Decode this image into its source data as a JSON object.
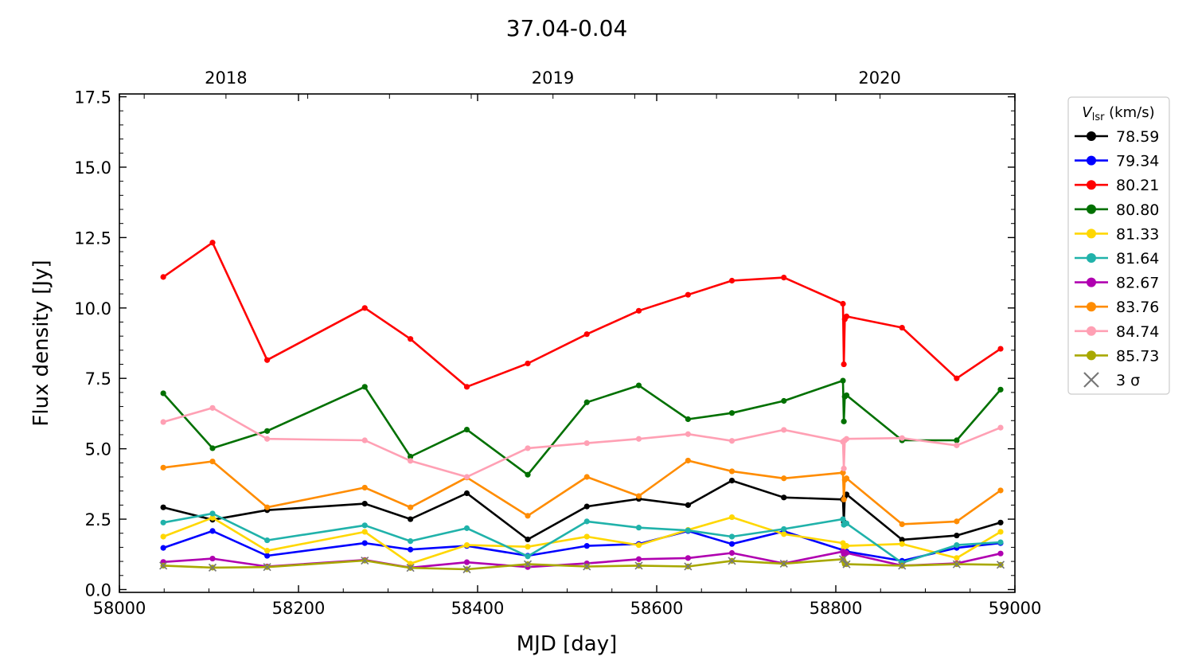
{
  "chart_data": {
    "type": "line",
    "title": "37.04-0.04",
    "xlabel": "MJD [day]",
    "ylabel": "Flux density [Jy]",
    "xlim": [
      58000,
      59000
    ],
    "ylim": [
      -0.1,
      17.6
    ],
    "x_ticks": [
      58000,
      58200,
      58400,
      58600,
      58800,
      59000
    ],
    "y_ticks": [
      0.0,
      2.5,
      5.0,
      7.5,
      10.0,
      12.5,
      15.0,
      17.5
    ],
    "y_tick_labels": [
      "0.0",
      "2.5",
      "5.0",
      "7.5",
      "10.0",
      "12.5",
      "15.0",
      "17.5"
    ],
    "top_axis": {
      "ticks": [
        58119,
        58484,
        58849
      ],
      "labels": [
        "2018",
        "2019",
        "2020"
      ]
    },
    "x": [
      58049,
      58104,
      58165,
      58274,
      58325,
      58388,
      58456,
      58522,
      58580,
      58635,
      58684,
      58742,
      58808,
      58809,
      58810,
      58812,
      58874,
      58935,
      58984
    ],
    "legend": {
      "title_main": "V",
      "title_sub": "lsr",
      "title_unit": " (km/s)",
      "placement": "outside-right",
      "sigma_label": "3 σ"
    },
    "series": [
      {
        "name": "78.59",
        "color": "#000000",
        "values": [
          2.92,
          2.48,
          2.82,
          3.05,
          2.5,
          3.42,
          1.78,
          2.95,
          3.22,
          3.0,
          3.87,
          3.27,
          3.2,
          2.4,
          3.3,
          3.38,
          1.77,
          1.92,
          2.38
        ]
      },
      {
        "name": "79.34",
        "color": "#0000ff",
        "values": [
          1.48,
          2.08,
          1.2,
          1.65,
          1.42,
          1.55,
          1.2,
          1.55,
          1.62,
          2.08,
          1.62,
          2.07,
          1.4,
          1.3,
          1.35,
          1.35,
          1.02,
          1.48,
          1.65
        ]
      },
      {
        "name": "80.21",
        "color": "#ff0000",
        "values": [
          11.1,
          12.32,
          8.15,
          10.0,
          8.9,
          7.2,
          8.03,
          9.07,
          9.9,
          10.47,
          10.97,
          11.08,
          10.15,
          8.0,
          9.6,
          9.7,
          9.3,
          7.5,
          8.55
        ]
      },
      {
        "name": "80.80",
        "color": "#007000",
        "values": [
          6.97,
          5.02,
          5.63,
          7.2,
          4.72,
          5.68,
          4.08,
          6.65,
          7.25,
          6.05,
          6.27,
          6.7,
          7.42,
          5.97,
          6.85,
          6.9,
          5.3,
          5.3,
          7.1
        ]
      },
      {
        "name": "81.33",
        "color": "#ffd700",
        "values": [
          1.88,
          2.55,
          1.38,
          2.05,
          0.92,
          1.58,
          1.52,
          1.88,
          1.58,
          2.12,
          2.57,
          1.97,
          1.65,
          1.5,
          1.55,
          1.55,
          1.62,
          1.12,
          2.05
        ]
      },
      {
        "name": "81.64",
        "color": "#20b2aa",
        "values": [
          2.38,
          2.7,
          1.75,
          2.28,
          1.72,
          2.18,
          1.18,
          2.42,
          2.2,
          2.1,
          1.88,
          2.15,
          2.5,
          2.3,
          2.35,
          2.35,
          0.95,
          1.58,
          1.68
        ]
      },
      {
        "name": "82.67",
        "color": "#b000b0",
        "values": [
          0.98,
          1.1,
          0.82,
          1.05,
          0.78,
          0.97,
          0.8,
          0.93,
          1.08,
          1.12,
          1.3,
          0.93,
          1.35,
          1.25,
          1.3,
          1.3,
          0.85,
          0.93,
          1.28
        ]
      },
      {
        "name": "83.76",
        "color": "#ff8c00",
        "values": [
          4.33,
          4.55,
          2.92,
          3.62,
          2.92,
          3.98,
          2.62,
          4.0,
          3.32,
          4.58,
          4.2,
          3.95,
          4.15,
          3.2,
          3.9,
          3.95,
          2.32,
          2.42,
          3.52
        ]
      },
      {
        "name": "84.74",
        "color": "#ffa0b4",
        "values": [
          5.95,
          6.45,
          5.35,
          5.3,
          4.57,
          4.0,
          5.02,
          5.2,
          5.35,
          5.52,
          5.28,
          5.67,
          5.25,
          4.3,
          5.3,
          5.35,
          5.38,
          5.12,
          5.75
        ]
      },
      {
        "name": "85.73",
        "color": "#a8a800",
        "values": [
          0.85,
          0.78,
          0.8,
          1.03,
          0.77,
          0.72,
          0.9,
          0.82,
          0.85,
          0.82,
          1.02,
          0.92,
          1.08,
          1.0,
          0.9,
          0.9,
          0.85,
          0.9,
          0.88
        ]
      }
    ],
    "sigma_3": {
      "color": "#777777",
      "x": [
        58049,
        58104,
        58165,
        58274,
        58325,
        58388,
        58456,
        58522,
        58580,
        58635,
        58684,
        58742,
        58808,
        58812,
        58874,
        58935,
        58984
      ],
      "values": [
        0.85,
        0.78,
        0.8,
        1.03,
        0.77,
        0.72,
        0.9,
        0.82,
        0.85,
        0.82,
        1.02,
        0.92,
        1.08,
        0.9,
        0.85,
        0.9,
        0.88
      ]
    }
  }
}
